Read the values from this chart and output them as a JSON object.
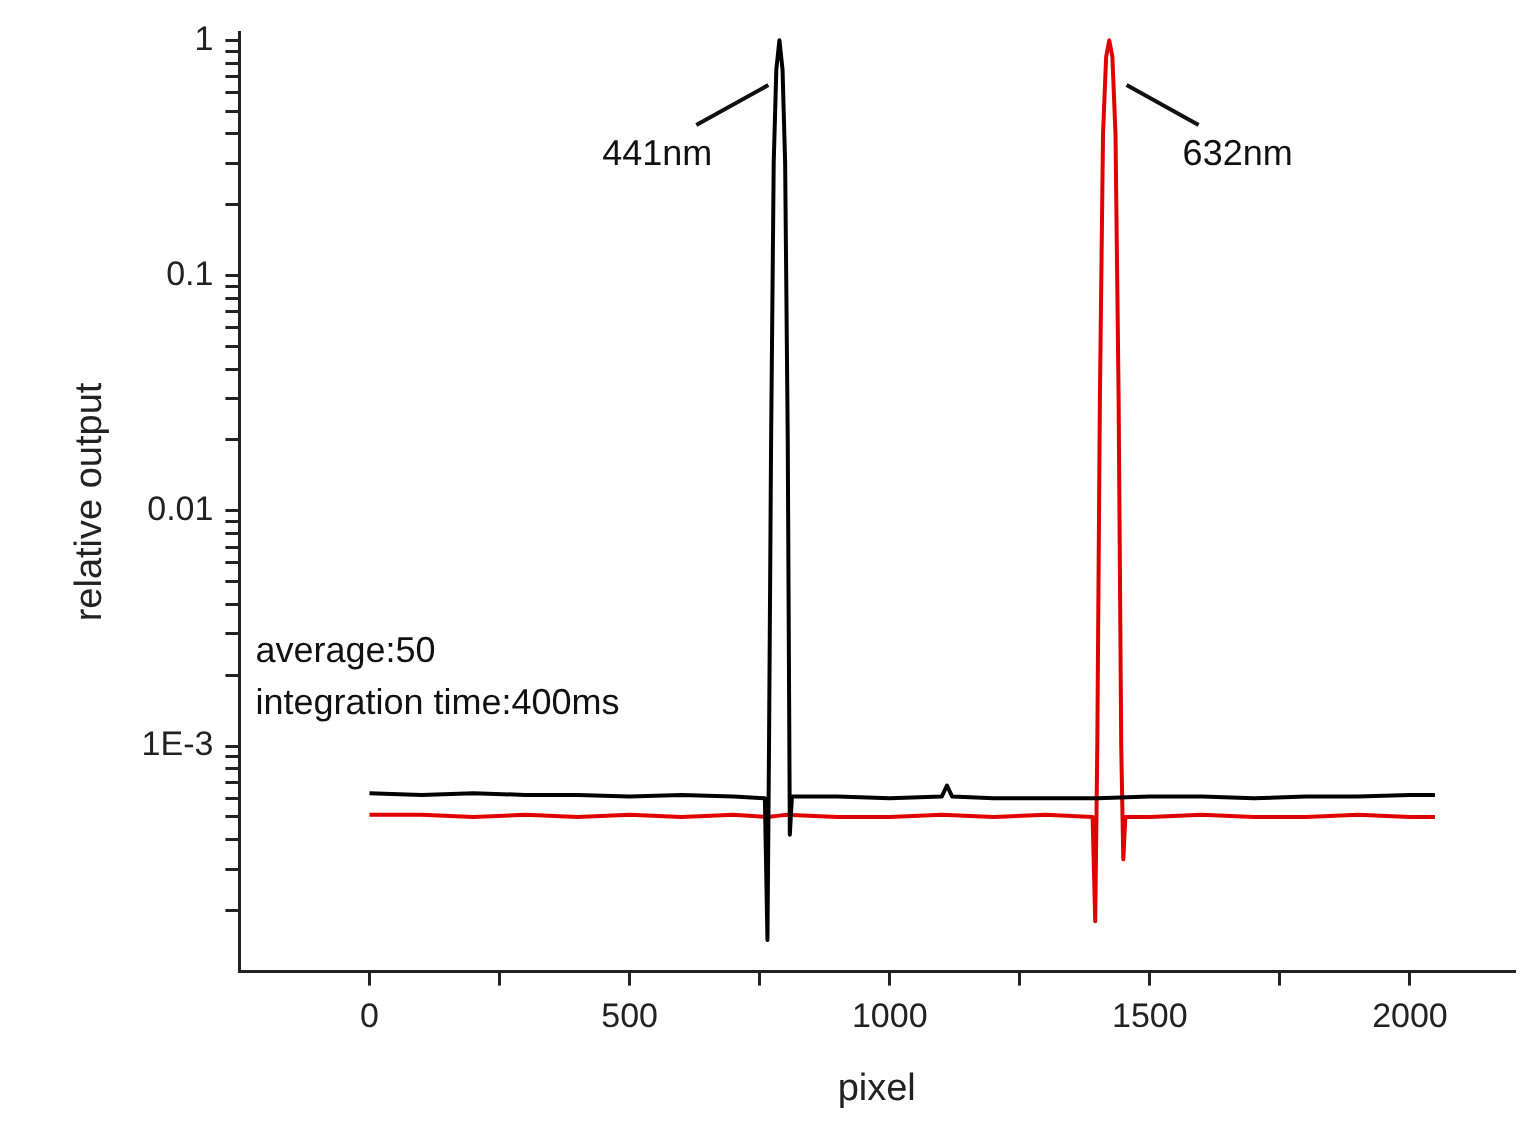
{
  "chart_data": {
    "type": "line",
    "xlabel": "pixel",
    "ylabel": "relative output",
    "log": "y",
    "grid": false,
    "legend": false,
    "marker": "none",
    "line_style": "solid",
    "xlim": [
      -250,
      2200
    ],
    "xticks": [
      0,
      {
        "value": 250,
        "label": null
      },
      500,
      {
        "value": 750,
        "label": null
      },
      1000,
      {
        "value": 1250,
        "label": null
      },
      1500,
      {
        "value": 1750,
        "label": null
      },
      2000
    ],
    "ylim": [
      0.00011,
      1.08
    ],
    "yticks": [
      {
        "value": 0.0002,
        "label": null
      },
      {
        "value": 0.0003,
        "label": null
      },
      {
        "value": 0.0004,
        "label": null
      },
      {
        "value": 0.0005,
        "label": null
      },
      {
        "value": 0.0006,
        "label": null
      },
      {
        "value": 0.0007,
        "label": null
      },
      {
        "value": 0.0008,
        "label": null
      },
      {
        "value": 0.0009,
        "label": null
      },
      {
        "value": 0.001,
        "label": "1E-3"
      },
      {
        "value": 0.002,
        "label": null
      },
      {
        "value": 0.003,
        "label": null
      },
      {
        "value": 0.004,
        "label": null
      },
      {
        "value": 0.005,
        "label": null
      },
      {
        "value": 0.006,
        "label": null
      },
      {
        "value": 0.007,
        "label": null
      },
      {
        "value": 0.008,
        "label": null
      },
      {
        "value": 0.009,
        "label": null
      },
      0.01,
      {
        "value": 0.02,
        "label": null
      },
      {
        "value": 0.03,
        "label": null
      },
      {
        "value": 0.04,
        "label": null
      },
      {
        "value": 0.05,
        "label": null
      },
      {
        "value": 0.06,
        "label": null
      },
      {
        "value": 0.07,
        "label": null
      },
      {
        "value": 0.08,
        "label": null
      },
      {
        "value": 0.09,
        "label": null
      },
      0.1,
      {
        "value": 0.2,
        "label": null
      },
      {
        "value": 0.3,
        "label": null
      },
      {
        "value": 0.4,
        "label": null
      },
      {
        "value": 0.5,
        "label": null
      },
      {
        "value": 0.6,
        "label": null
      },
      {
        "value": 0.7,
        "label": null
      },
      {
        "value": 0.8,
        "label": null
      },
      {
        "value": 0.9,
        "label": null
      },
      1
    ],
    "series": [
      {
        "color": "#000000",
        "x": [
          0,
          100,
          200,
          300,
          400,
          500,
          600,
          700,
          760,
          765,
          768,
          772,
          777,
          782,
          788,
          794,
          799,
          804,
          808,
          812,
          900,
          1000,
          1100,
          1110,
          1120,
          1200,
          1300,
          1400,
          1500,
          1600,
          1700,
          1800,
          1900,
          2000,
          2048
        ],
        "values": [
          0.00063,
          0.00062,
          0.00063,
          0.00062,
          0.00062,
          0.00061,
          0.00062,
          0.00061,
          0.0006,
          0.00015,
          0.001,
          0.02,
          0.3,
          0.75,
          1,
          0.75,
          0.3,
          0.02,
          0.00042,
          0.00061,
          0.00061,
          0.0006,
          0.00061,
          0.00068,
          0.00061,
          0.0006,
          0.0006,
          0.0006,
          0.00061,
          0.00061,
          0.0006,
          0.00061,
          0.00061,
          0.00062,
          0.00062
        ]
      },
      {
        "color": "#e00000",
        "x": [
          0,
          100,
          200,
          300,
          400,
          500,
          600,
          700,
          765,
          800,
          900,
          1000,
          1100,
          1200,
          1300,
          1390,
          1395,
          1399,
          1404,
          1410,
          1416,
          1422,
          1428,
          1434,
          1440,
          1445,
          1449,
          1453,
          1500,
          1600,
          1700,
          1800,
          1900,
          2000,
          2048
        ],
        "values": [
          0.00051,
          0.00051,
          0.0005,
          0.00051,
          0.0005,
          0.00051,
          0.0005,
          0.00051,
          0.0005,
          0.00051,
          0.0005,
          0.0005,
          0.00051,
          0.0005,
          0.00051,
          0.0005,
          0.00018,
          0.001,
          0.03,
          0.4,
          0.85,
          1,
          0.85,
          0.4,
          0.03,
          0.001,
          0.00033,
          0.0005,
          0.0005,
          0.00051,
          0.0005,
          0.0005,
          0.00051,
          0.0005,
          0.0005
        ]
      }
    ],
    "annotations": [
      {
        "text": "441nm",
        "x": 782,
        "y": 0.62
      },
      {
        "text": "632nm",
        "x": 1440,
        "y": 0.62
      },
      "average:50",
      "integration time:400ms"
    ]
  }
}
